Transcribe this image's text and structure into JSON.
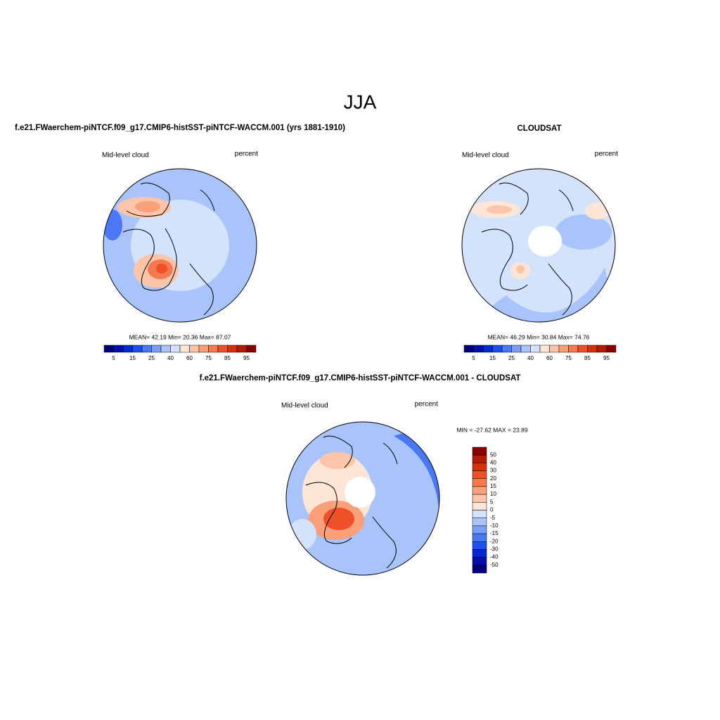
{
  "title": "JJA",
  "colors": [
    "#00007f",
    "#0010a8",
    "#0029d4",
    "#1e50f0",
    "#4a78f5",
    "#7a9ff7",
    "#a8c4fa",
    "#d3e3fc",
    "#fde6d5",
    "#fcc4a8",
    "#f9a07a",
    "#f57a50",
    "#ee5028",
    "#d9300e",
    "#b81806",
    "#8a0000"
  ],
  "panels": [
    {
      "case": "f.e21.FWaerchem-piNTCF.f09_g17.CMIP6-histSST-piNTCF-WACCM.001 (yrs 1881-1910)",
      "left_label": "Mid-level cloud",
      "right_label": "percent",
      "stats": "MEAN=  42.19  Min=  20.36  Max=  87.07",
      "colorbar_labels": [
        "5",
        "15",
        "25",
        "40",
        "60",
        "75",
        "85",
        "95"
      ]
    },
    {
      "case": "CLOUDSAT",
      "left_label": "Mid-level cloud",
      "right_label": "percent",
      "stats": "MEAN=  46.29  Min=  30.84  Max=  74.76",
      "colorbar_labels": [
        "5",
        "15",
        "25",
        "40",
        "60",
        "75",
        "85",
        "95"
      ]
    },
    {
      "case": "f.e21.FWaerchem-piNTCF.f09_g17.CMIP6-histSST-piNTCF-WACCM.001 - CLOUDSAT",
      "left_label": "Mid-level cloud",
      "right_label": "percent",
      "stats": "MIN = -27.62 MAX =  23.89",
      "colorbar_labels": [
        "50",
        "40",
        "30",
        "20",
        "15",
        "10",
        "5",
        "0",
        "-5",
        "-10",
        "-15",
        "-20",
        "-30",
        "-40",
        "-50"
      ]
    }
  ]
}
